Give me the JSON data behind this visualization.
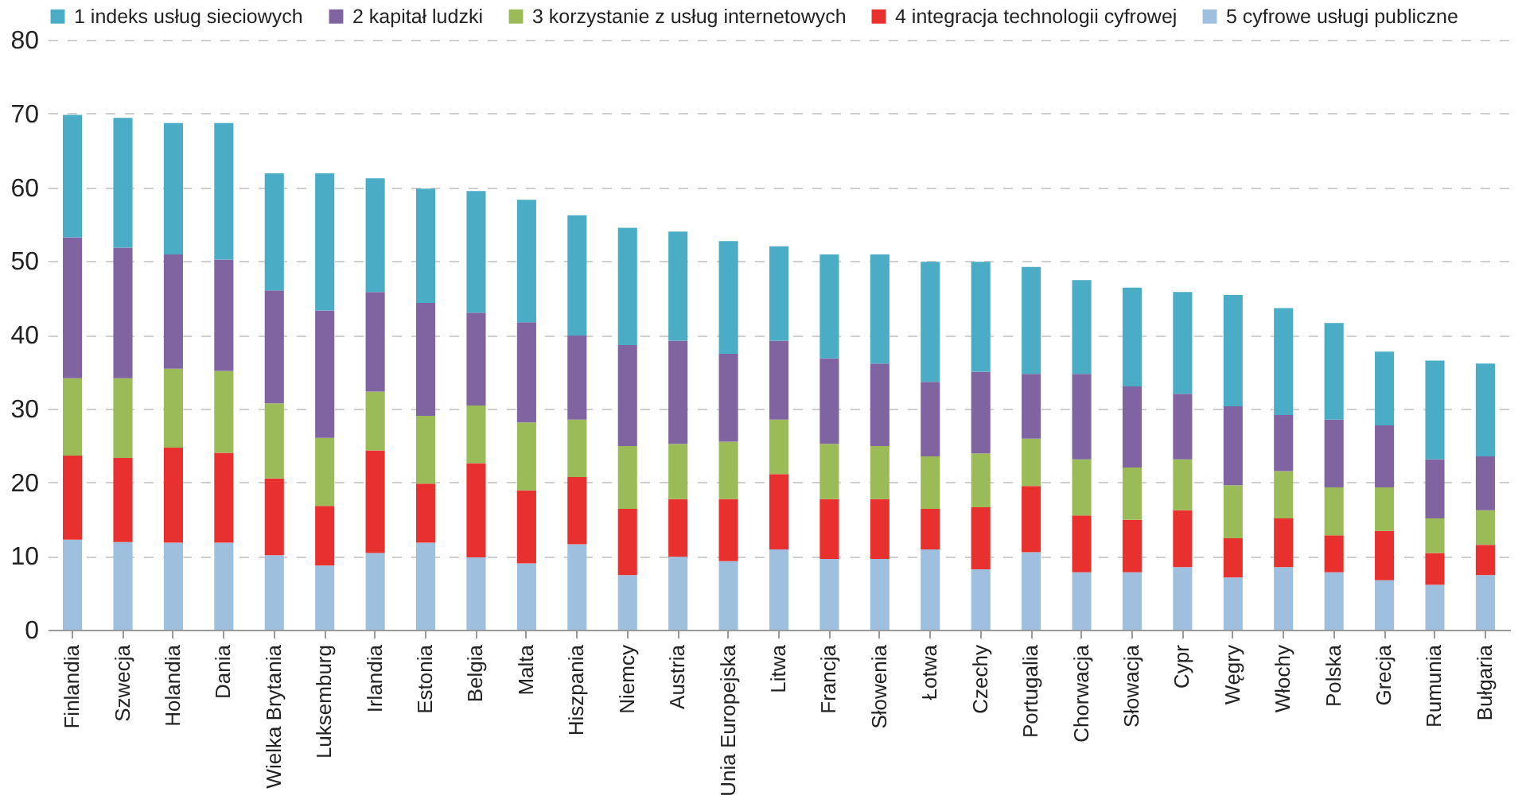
{
  "chart_data": {
    "type": "bar",
    "stacked": true,
    "categories": [
      "Finlandia",
      "Szwecja",
      "Holandia",
      "Dania",
      "Wielka Brytania",
      "Luksemburg",
      "Irlandia",
      "Estonia",
      "Belgia",
      "Malta",
      "Hiszpania",
      "Niemcy",
      "Austria",
      "Unia Europejska",
      "Litwa",
      "Francja",
      "Słowenia",
      "Łotwa",
      "Czechy",
      "Portugalia",
      "Chorwacja",
      "Słowacja",
      "Cypr",
      "Węgry",
      "Włochy",
      "Polska",
      "Grecja",
      "Rumunia",
      "Bułgaria"
    ],
    "series": [
      {
        "name": "5 cyfrowe usługi publiczne",
        "color": "#9fbfdf",
        "values": [
          12.2,
          11.9,
          11.8,
          11.8,
          10.1,
          8.7,
          10.4,
          11.8,
          9.8,
          9.0,
          11.6,
          7.4,
          9.9,
          9.3,
          10.9,
          9.6,
          9.6,
          10.9,
          8.2,
          10.5,
          7.8,
          7.8,
          8.5,
          7.1,
          8.5,
          7.8,
          6.7,
          6.1,
          7.4
        ]
      },
      {
        "name": "4 integracja technologii cyfrowej",
        "color": "#e8312f",
        "values": [
          11.4,
          11.4,
          12.9,
          12.2,
          10.4,
          8.1,
          13.9,
          8.0,
          12.8,
          9.9,
          9.1,
          9.0,
          7.8,
          8.4,
          10.2,
          8.1,
          8.1,
          5.5,
          8.4,
          9.0,
          7.7,
          7.1,
          7.7,
          5.3,
          6.6,
          5.0,
          6.7,
          4.3,
          4.1
        ]
      },
      {
        "name": "3 korzystanie z usług internetowych",
        "color": "#9bbb59",
        "values": [
          10.5,
          10.8,
          10.7,
          11.1,
          10.2,
          9.2,
          8.0,
          9.2,
          7.8,
          9.2,
          7.8,
          8.5,
          7.5,
          7.8,
          7.4,
          7.5,
          7.2,
          7.1,
          7.3,
          6.4,
          7.6,
          7.1,
          6.9,
          7.2,
          6.4,
          6.5,
          5.9,
          4.7,
          4.7
        ]
      },
      {
        "name": "2 kapitał ludzki",
        "color": "#8064a2",
        "values": [
          19.1,
          17.7,
          15.5,
          15.1,
          15.3,
          17.3,
          13.5,
          15.3,
          12.6,
          13.6,
          11.4,
          13.7,
          14.0,
          11.9,
          10.7,
          11.6,
          11.2,
          10.1,
          11.1,
          8.8,
          11.6,
          11.0,
          8.9,
          10.7,
          7.6,
          9.2,
          8.4,
          8.0,
          7.3
        ]
      },
      {
        "name": "1 indeks usług sieciowych",
        "color": "#4bacc6",
        "values": [
          16.6,
          17.6,
          17.8,
          18.5,
          15.9,
          18.6,
          15.4,
          15.5,
          16.5,
          16.6,
          16.3,
          15.9,
          14.8,
          15.3,
          12.8,
          14.1,
          14.8,
          16.3,
          14.9,
          14.5,
          12.7,
          13.4,
          13.8,
          15.1,
          14.5,
          13.1,
          10.0,
          13.4,
          12.6
        ]
      }
    ],
    "ylim": [
      0,
      80
    ],
    "yticks": [
      0,
      10,
      20,
      30,
      40,
      50,
      60,
      70,
      80
    ],
    "grid": "y",
    "legend": "top"
  }
}
